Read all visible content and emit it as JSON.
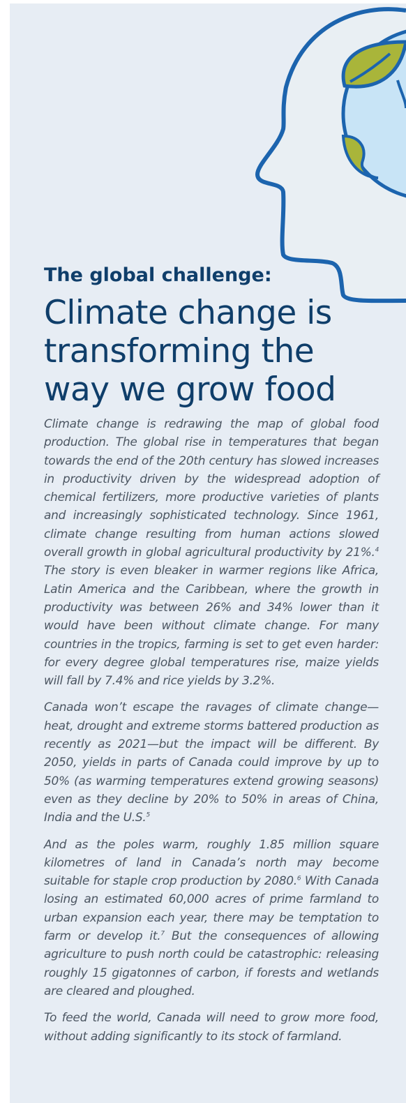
{
  "header": {
    "kicker": "The global challenge:",
    "title": "Climate change is transforming the way we grow food"
  },
  "paragraphs": [
    {
      "runs": [
        {
          "text": "Climate change is redrawing the map of global food production. The global rise in temperatures that began towards the end of the 20th century has slowed increases in productivity driven by the widespread adoption of chemical fertilizers, more productive varieties of plants and increasingly sophisticated technology.  Since 1961, climate change resulting from human actions slowed overall growth in global agricultural productivity by 21%."
        },
        {
          "sup": "4"
        },
        {
          "text": "  The story is even bleaker in warmer regions like Africa, Latin America and the Caribbean, where the growth in productivity was between 26% and 34% lower than it would have been without climate change. For many countries in the tropics, farming is set to get even harder: for every degree global temperatures rise, maize yields will fall by 7.4% and rice yields by 3.2%."
        }
      ]
    },
    {
      "runs": [
        {
          "text": "Canada won’t escape the ravages of climate change—heat, drought and extreme storms battered production as recently as 2021—but the impact will be different. By 2050, yields in parts of Canada could improve by up to 50% (as warming temperatures extend growing seasons) even as they decline by 20% to 50% in areas of China, India and the U.S."
        },
        {
          "sup": "5"
        }
      ]
    },
    {
      "runs": [
        {
          "text": "And as the poles warm, roughly 1.85 million square kilometres of land in Canada’s north may become suitable for staple crop production by 2080."
        },
        {
          "sup": "6"
        },
        {
          "text": "  With Canada losing an estimated 60,000 acres of prime farmland to urban expansion each year, there may be temptation to farm or develop it."
        },
        {
          "sup": "7"
        },
        {
          "text": "  But the consequences of allowing agriculture to push north could be catastrophic: releasing roughly 15 gigatonnes of carbon, if forests and wetlands are cleared and ploughed."
        }
      ]
    },
    {
      "runs": [
        {
          "text": "To feed the world, Canada will need to grow more food, without adding significantly to its stock of farmland."
        }
      ]
    }
  ]
}
